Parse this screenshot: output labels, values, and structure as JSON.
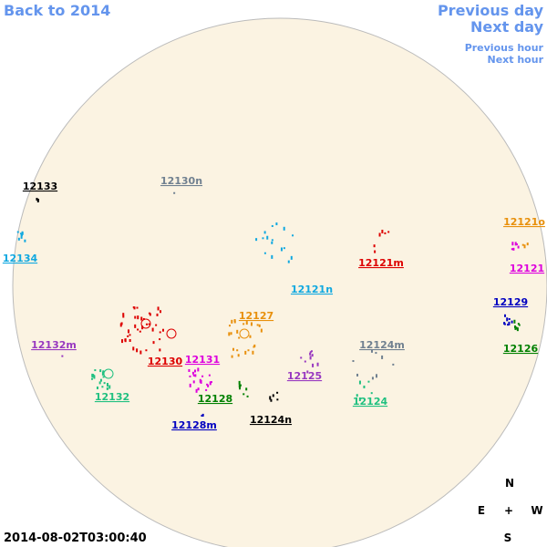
{
  "navigation": {
    "back": "Back to 2014",
    "previous_day": "Previous day",
    "next_day": "Next day",
    "previous_hour": "Previous hour",
    "next_hour": "Next hour"
  },
  "regions": [
    {
      "label": "12133",
      "color": "#000000"
    },
    {
      "label": "12130n",
      "color": "#708090"
    },
    {
      "label": "12134",
      "color": "#10a8e0"
    },
    {
      "label": "12121o",
      "color": "#e8900c"
    },
    {
      "label": "12121m",
      "color": "#dd0000"
    },
    {
      "label": "12121",
      "color": "#dd00dd"
    },
    {
      "label": "12121n",
      "color": "#10a8e0"
    },
    {
      "label": "12127",
      "color": "#e8900c"
    },
    {
      "label": "12129",
      "color": "#0000c0"
    },
    {
      "label": "12132m",
      "color": "#9838c0"
    },
    {
      "label": "12124m",
      "color": "#708090"
    },
    {
      "label": "12126",
      "color": "#008000"
    },
    {
      "label": "12130",
      "color": "#dd0000"
    },
    {
      "label": "12131",
      "color": "#dd00dd"
    },
    {
      "label": "12125",
      "color": "#9838c0"
    },
    {
      "label": "12132",
      "color": "#20c080"
    },
    {
      "label": "12128",
      "color": "#008000"
    },
    {
      "label": "12124",
      "color": "#20c080"
    },
    {
      "label": "12128m",
      "color": "#0000c0"
    },
    {
      "label": "12124n",
      "color": "#000000"
    }
  ],
  "compass": {
    "north": "N",
    "east": "E",
    "center": "+",
    "west": "W",
    "south": "S"
  },
  "timestamp": "2014-08-02T03:00:40"
}
